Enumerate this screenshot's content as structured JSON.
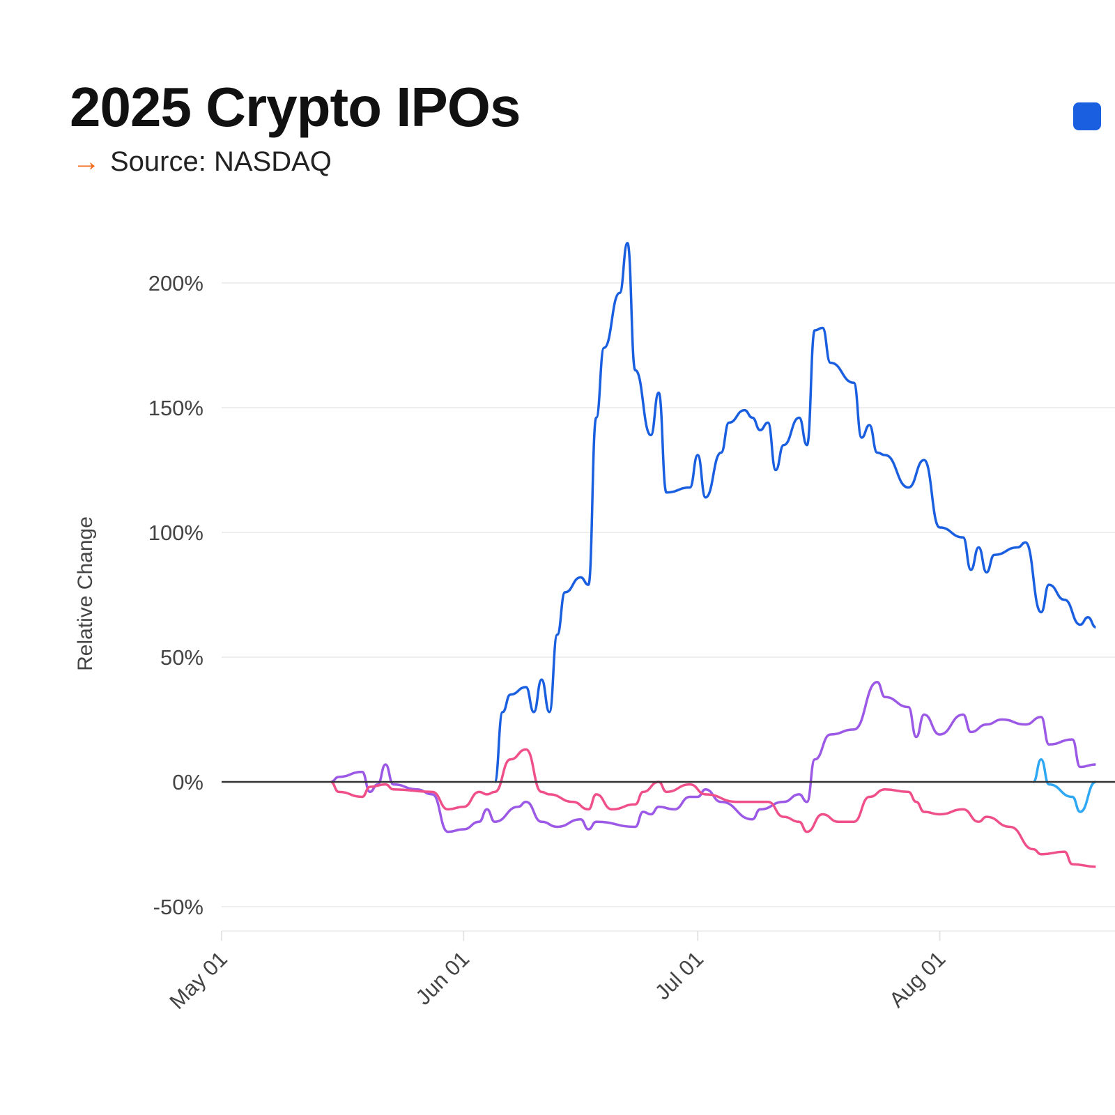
{
  "chart_data": {
    "type": "line",
    "title": "2025 Crypto IPOs",
    "subtitle": "Source: NASDAQ",
    "ylabel": "Relative Change",
    "xlabel": "",
    "ylim": [
      -50,
      215
    ],
    "yticks": [
      -50,
      0,
      50,
      100,
      150,
      200
    ],
    "ytick_labels": [
      "-50%",
      "0%",
      "50%",
      "100%",
      "150%",
      "200%"
    ],
    "xticks": [
      "2025-05-01",
      "2025-06-01",
      "2025-07-01",
      "2025-08-01"
    ],
    "xtick_labels": [
      "May 01",
      "Jun 01",
      "Jul 01",
      "Aug 01"
    ],
    "xstart": "2025-05-01",
    "grid": true,
    "zero_line": true,
    "series": [
      {
        "color": "#1a5fe0",
        "points": [
          [
            "2025-06-05",
            0
          ],
          [
            "2025-06-06",
            28
          ],
          [
            "2025-06-07",
            35
          ],
          [
            "2025-06-09",
            38
          ],
          [
            "2025-06-10",
            28
          ],
          [
            "2025-06-11",
            41
          ],
          [
            "2025-06-12",
            28
          ],
          [
            "2025-06-13",
            59
          ],
          [
            "2025-06-14",
            76
          ],
          [
            "2025-06-16",
            82
          ],
          [
            "2025-06-17",
            79
          ],
          [
            "2025-06-18",
            146
          ],
          [
            "2025-06-19",
            174
          ],
          [
            "2025-06-21",
            196
          ],
          [
            "2025-06-22",
            216
          ],
          [
            "2025-06-23",
            165
          ],
          [
            "2025-06-25",
            139
          ],
          [
            "2025-06-26",
            156
          ],
          [
            "2025-06-27",
            116
          ],
          [
            "2025-06-30",
            118
          ],
          [
            "2025-07-01",
            131
          ],
          [
            "2025-07-02",
            114
          ],
          [
            "2025-07-04",
            132
          ],
          [
            "2025-07-05",
            144
          ],
          [
            "2025-07-07",
            149
          ],
          [
            "2025-07-08",
            146
          ],
          [
            "2025-07-09",
            141
          ],
          [
            "2025-07-10",
            144
          ],
          [
            "2025-07-11",
            125
          ],
          [
            "2025-07-12",
            135
          ],
          [
            "2025-07-14",
            146
          ],
          [
            "2025-07-15",
            135
          ],
          [
            "2025-07-16",
            181
          ],
          [
            "2025-07-17",
            182
          ],
          [
            "2025-07-18",
            168
          ],
          [
            "2025-07-21",
            160
          ],
          [
            "2025-07-22",
            138
          ],
          [
            "2025-07-23",
            143
          ],
          [
            "2025-07-24",
            132
          ],
          [
            "2025-07-25",
            131
          ],
          [
            "2025-07-28",
            118
          ],
          [
            "2025-07-30",
            129
          ],
          [
            "2025-08-01",
            102
          ],
          [
            "2025-08-04",
            98
          ],
          [
            "2025-08-05",
            85
          ],
          [
            "2025-08-06",
            94
          ],
          [
            "2025-08-07",
            84
          ],
          [
            "2025-08-08",
            91
          ],
          [
            "2025-08-11",
            94
          ],
          [
            "2025-08-12",
            96
          ],
          [
            "2025-08-14",
            68
          ],
          [
            "2025-08-15",
            79
          ],
          [
            "2025-08-17",
            73
          ],
          [
            "2025-08-19",
            63
          ],
          [
            "2025-08-20",
            66
          ],
          [
            "2025-08-21",
            62
          ]
        ]
      },
      {
        "color": "#9b59e6",
        "points": [
          [
            "2025-05-15",
            0
          ],
          [
            "2025-05-16",
            2
          ],
          [
            "2025-05-19",
            4
          ],
          [
            "2025-05-20",
            -4
          ],
          [
            "2025-05-21",
            -1
          ],
          [
            "2025-05-22",
            7
          ],
          [
            "2025-05-23",
            -1
          ],
          [
            "2025-05-26",
            -3
          ],
          [
            "2025-05-28",
            -5
          ],
          [
            "2025-05-30",
            -20
          ],
          [
            "2025-06-01",
            -19
          ],
          [
            "2025-06-03",
            -16
          ],
          [
            "2025-06-04",
            -11
          ],
          [
            "2025-06-05",
            -16
          ],
          [
            "2025-06-08",
            -10
          ],
          [
            "2025-06-09",
            -8
          ],
          [
            "2025-06-11",
            -16
          ],
          [
            "2025-06-13",
            -18
          ],
          [
            "2025-06-16",
            -15
          ],
          [
            "2025-06-17",
            -19
          ],
          [
            "2025-06-18",
            -16
          ],
          [
            "2025-06-23",
            -18
          ],
          [
            "2025-06-24",
            -12
          ],
          [
            "2025-06-25",
            -13
          ],
          [
            "2025-06-26",
            -10
          ],
          [
            "2025-06-28",
            -11
          ],
          [
            "2025-06-30",
            -6
          ],
          [
            "2025-07-01",
            -6
          ],
          [
            "2025-07-02",
            -3
          ],
          [
            "2025-07-04",
            -8
          ],
          [
            "2025-07-08",
            -15
          ],
          [
            "2025-07-09",
            -11
          ],
          [
            "2025-07-12",
            -8
          ],
          [
            "2025-07-14",
            -5
          ],
          [
            "2025-07-15",
            -8
          ],
          [
            "2025-07-16",
            9
          ],
          [
            "2025-07-18",
            19
          ],
          [
            "2025-07-21",
            21
          ],
          [
            "2025-07-24",
            40
          ],
          [
            "2025-07-25",
            34
          ],
          [
            "2025-07-28",
            30
          ],
          [
            "2025-07-29",
            18
          ],
          [
            "2025-07-30",
            27
          ],
          [
            "2025-08-01",
            19
          ],
          [
            "2025-08-04",
            27
          ],
          [
            "2025-08-05",
            20
          ],
          [
            "2025-08-07",
            23
          ],
          [
            "2025-08-09",
            25
          ],
          [
            "2025-08-12",
            23
          ],
          [
            "2025-08-14",
            26
          ],
          [
            "2025-08-15",
            15
          ],
          [
            "2025-08-18",
            17
          ],
          [
            "2025-08-19",
            6
          ],
          [
            "2025-08-21",
            7
          ]
        ]
      },
      {
        "color": "#f0508a",
        "points": [
          [
            "2025-05-15",
            0
          ],
          [
            "2025-05-16",
            -4
          ],
          [
            "2025-05-19",
            -6
          ],
          [
            "2025-05-20",
            -2
          ],
          [
            "2025-05-22",
            -1
          ],
          [
            "2025-05-23",
            -3
          ],
          [
            "2025-05-28",
            -4
          ],
          [
            "2025-05-30",
            -11
          ],
          [
            "2025-06-01",
            -10
          ],
          [
            "2025-06-03",
            -4
          ],
          [
            "2025-06-04",
            -5
          ],
          [
            "2025-06-05",
            -4
          ],
          [
            "2025-06-07",
            9
          ],
          [
            "2025-06-09",
            13
          ],
          [
            "2025-06-11",
            -4
          ],
          [
            "2025-06-12",
            -5
          ],
          [
            "2025-06-15",
            -8
          ],
          [
            "2025-06-17",
            -11
          ],
          [
            "2025-06-18",
            -5
          ],
          [
            "2025-06-20",
            -11
          ],
          [
            "2025-06-23",
            -9
          ],
          [
            "2025-06-24",
            -4
          ],
          [
            "2025-06-26",
            0
          ],
          [
            "2025-06-27",
            -4
          ],
          [
            "2025-06-30",
            -1
          ],
          [
            "2025-07-02",
            -5
          ],
          [
            "2025-07-06",
            -8
          ],
          [
            "2025-07-10",
            -8
          ],
          [
            "2025-07-12",
            -14
          ],
          [
            "2025-07-14",
            -16
          ],
          [
            "2025-07-15",
            -20
          ],
          [
            "2025-07-17",
            -13
          ],
          [
            "2025-07-19",
            -16
          ],
          [
            "2025-07-21",
            -16
          ],
          [
            "2025-07-23",
            -6
          ],
          [
            "2025-07-25",
            -3
          ],
          [
            "2025-07-28",
            -4
          ],
          [
            "2025-07-29",
            -8
          ],
          [
            "2025-07-30",
            -12
          ],
          [
            "2025-08-01",
            -13
          ],
          [
            "2025-08-04",
            -11
          ],
          [
            "2025-08-06",
            -16
          ],
          [
            "2025-08-07",
            -14
          ],
          [
            "2025-08-10",
            -18
          ],
          [
            "2025-08-13",
            -27
          ],
          [
            "2025-08-14",
            -29
          ],
          [
            "2025-08-17",
            -28
          ],
          [
            "2025-08-18",
            -33
          ],
          [
            "2025-08-21",
            -34
          ]
        ]
      },
      {
        "color": "#2ea8f5",
        "points": [
          [
            "2025-08-13",
            0
          ],
          [
            "2025-08-14",
            9
          ],
          [
            "2025-08-15",
            -1
          ],
          [
            "2025-08-18",
            -6
          ],
          [
            "2025-08-19",
            -12
          ],
          [
            "2025-08-21",
            0
          ]
        ]
      }
    ]
  },
  "legend": {
    "swatch_color": "#1a5fe0"
  }
}
